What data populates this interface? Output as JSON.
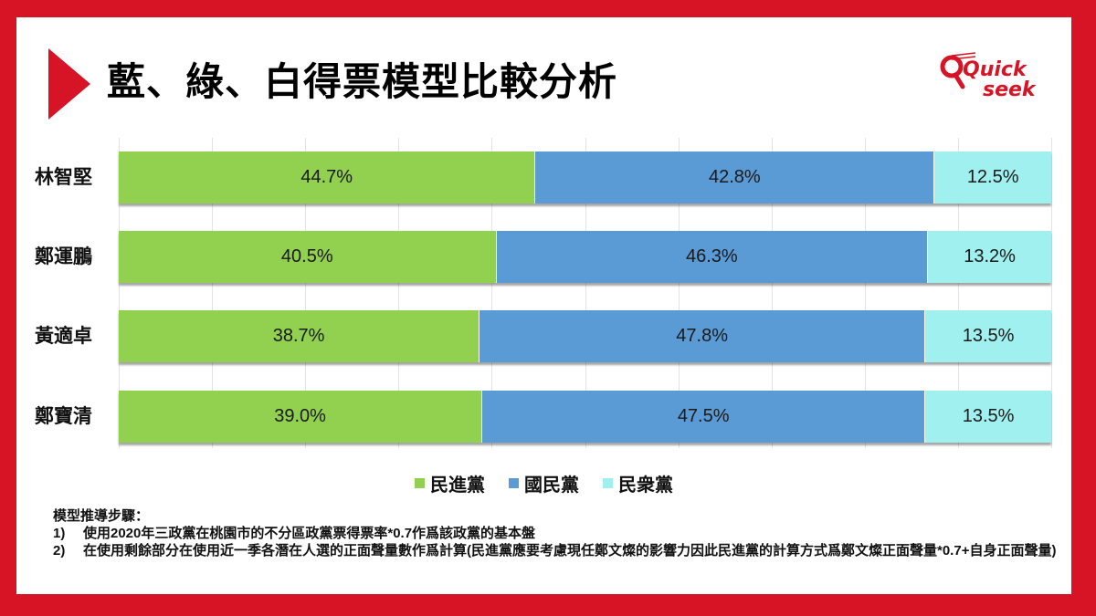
{
  "title": "藍、綠、白得票模型比較分析",
  "logo": {
    "line1": "Quick",
    "line2": "seek"
  },
  "colors": {
    "frame": "#d71426",
    "dpp": "#92d050",
    "kmt": "#5b9bd5",
    "tpp": "#9ff0ef"
  },
  "legend": [
    {
      "label": "民進黨",
      "color": "#92d050"
    },
    {
      "label": "國民黨",
      "color": "#5b9bd5"
    },
    {
      "label": "民衆黨",
      "color": "#9ff0ef"
    }
  ],
  "rows": [
    {
      "name": "林智堅",
      "dpp": "44.7%",
      "kmt": "42.8%",
      "tpp": "12.5%"
    },
    {
      "name": "鄭運鵬",
      "dpp": "40.5%",
      "kmt": "46.3%",
      "tpp": "13.2%"
    },
    {
      "name": "黃適卓",
      "dpp": "38.7%",
      "kmt": "47.8%",
      "tpp": "13.5%"
    },
    {
      "name": "鄭寶清",
      "dpp": "39.0%",
      "kmt": "47.5%",
      "tpp": "13.5%"
    }
  ],
  "notes": {
    "heading": "模型推導步驟：",
    "items": [
      {
        "num": "1)",
        "text": "使用2020年三政黨在桃園市的不分區政黨票得票率*0.7作爲該政黨的基本盤"
      },
      {
        "num": "2)",
        "text": "在使用剩餘部分在使用近一季各潛在人選的正面聲量數作爲計算(民進黨應要考慮現任鄭文燦的影響力因此民進黨的計算方式爲鄭文燦正面聲量*0.7+自身正面聲量)"
      }
    ]
  },
  "chart_data": {
    "type": "bar",
    "orientation": "horizontal",
    "stacked": true,
    "normalized": true,
    "title": "藍、綠、白得票模型比較分析",
    "categories": [
      "林智堅",
      "鄭運鵬",
      "黃適卓",
      "鄭寶清"
    ],
    "series": [
      {
        "name": "民進黨",
        "color": "#92d050",
        "values": [
          44.7,
          40.5,
          38.7,
          39.0
        ]
      },
      {
        "name": "國民黨",
        "color": "#5b9bd5",
        "values": [
          42.8,
          46.3,
          47.8,
          47.5
        ]
      },
      {
        "name": "民衆黨",
        "color": "#9ff0ef",
        "values": [
          12.5,
          13.2,
          13.5,
          13.5
        ]
      }
    ],
    "xlabel": "",
    "ylabel": "",
    "xlim": [
      0,
      100
    ],
    "value_format": "percent, 1 decimal",
    "data_labels": true,
    "grid": "vertical gridlines every 10%",
    "legend_position": "bottom"
  }
}
